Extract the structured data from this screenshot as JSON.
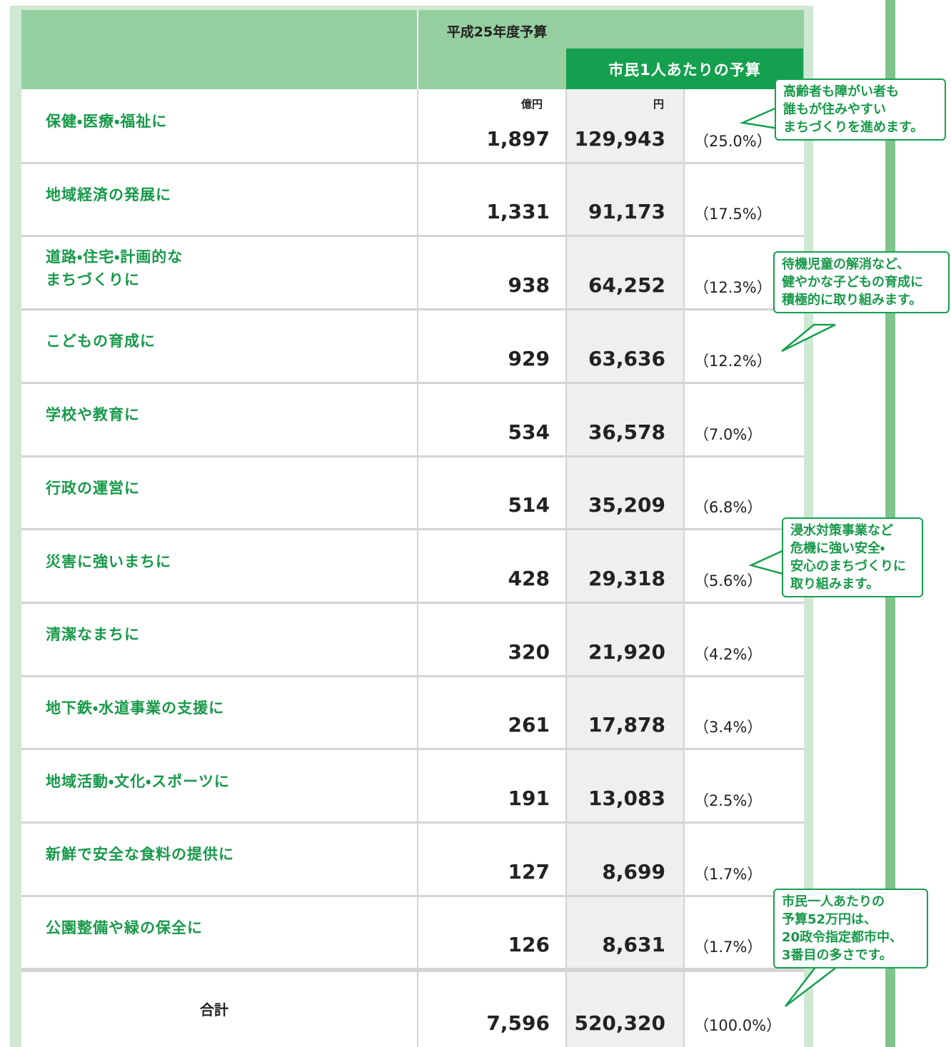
{
  "header": {
    "budget_title": "平成25年度予算",
    "per_capita_title": "市民1人あたりの予算",
    "unit_total": "億円",
    "unit_per_capita": "円"
  },
  "rows": [
    {
      "label": "保健・医療・福祉に",
      "total": "1,897",
      "per_capita": "129,943",
      "share": "（25.0%）"
    },
    {
      "label": "地域経済の発展に",
      "total": "1,331",
      "per_capita": "91,173",
      "share": "（17.5%）"
    },
    {
      "label": "道路・住宅・計画的な\nまちづくりに",
      "total": "938",
      "per_capita": "64,252",
      "share": "（12.3%）"
    },
    {
      "label": "こどもの育成に",
      "total": "929",
      "per_capita": "63,636",
      "share": "（12.2%）"
    },
    {
      "label": "学校や教育に",
      "total": "534",
      "per_capita": "36,578",
      "share": "（7.0%）"
    },
    {
      "label": "行政の運営に",
      "total": "514",
      "per_capita": "35,209",
      "share": "（6.8%）"
    },
    {
      "label": "災害に強いまちに",
      "total": "428",
      "per_capita": "29,318",
      "share": "（5.6%）"
    },
    {
      "label": "清潔なまちに",
      "total": "320",
      "per_capita": "21,920",
      "share": "（4.2%）"
    },
    {
      "label": "地下鉄・水道事業の支援に",
      "total": "261",
      "per_capita": "17,878",
      "share": "（3.4%）"
    },
    {
      "label": "地域活動・文化・スポーツに",
      "total": "191",
      "per_capita": "13,083",
      "share": "（2.5%）"
    },
    {
      "label": "新鮮で安全な食料の提供に",
      "total": "127",
      "per_capita": "8,699",
      "share": "（1.7%）"
    },
    {
      "label": "公園整備や緑の保全に",
      "total": "126",
      "per_capita": "8,631",
      "share": "（1.7%）"
    }
  ],
  "total_row": {
    "label": "合計",
    "total": "7,596",
    "per_capita": "520,320",
    "share": "（100.0%）"
  },
  "callouts": [
    "高齢者も障がい者も\n誰もが住みやすい\nまちづくりを進めます。",
    "待機児童の解消など、\n健やかな子どもの育成に\n積極的に取り組みます。",
    "浸水対策事業など\n危機に強い安全・\n安心のまちづくりに\n取り組みます。",
    "市民一人あたりの\n予算52万円は、\n20政令指定都市中、\n3番目の多さです。"
  ]
}
